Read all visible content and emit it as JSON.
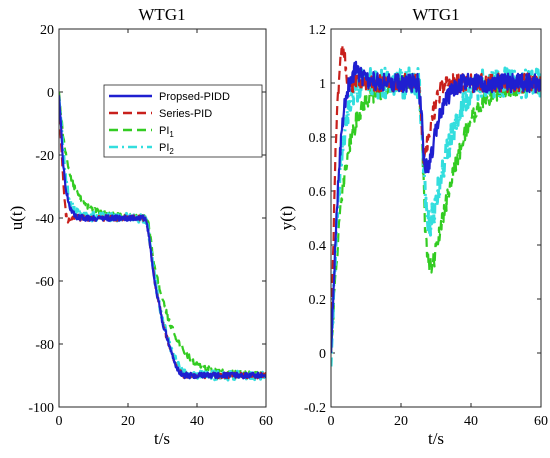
{
  "colors": {
    "proposed": "#1f1fd0",
    "series_pid": "#c8201c",
    "pi1": "#33cc22",
    "pi2": "#33dede"
  },
  "chart_data": [
    {
      "type": "line",
      "title": "WTG1",
      "xlabel": "t/s",
      "ylabel": "u(t)",
      "xlim": [
        0,
        60
      ],
      "ylim": [
        -100,
        20
      ],
      "xticks": [
        "0",
        "20",
        "40",
        "60"
      ],
      "yticks": [
        "-100",
        "-80",
        "-60",
        "-40",
        "-20",
        "0",
        "20"
      ],
      "grid": false,
      "legend_position": "top-right",
      "legend": [
        {
          "label": "Propsed-PIDD",
          "sub": "",
          "style": "solid",
          "color": "#1f1fd0"
        },
        {
          "label": "Series-PID",
          "sub": "",
          "style": "dashed",
          "color": "#c8201c"
        },
        {
          "label": "PI",
          "sub": "1",
          "style": "dashed",
          "color": "#33cc22"
        },
        {
          "label": "PI",
          "sub": "2",
          "style": "dashdot",
          "color": "#33dede"
        }
      ],
      "series": [
        {
          "key": "pi1",
          "style": "dashed",
          "color": "#33cc22",
          "x": [
            0,
            1,
            2,
            3,
            4,
            5,
            6,
            8,
            10,
            14,
            20,
            25,
            26,
            27,
            28,
            30,
            32,
            34,
            36,
            38,
            40,
            45,
            50,
            60
          ],
          "y": [
            0,
            -12,
            -20,
            -25,
            -29,
            -31.5,
            -33.5,
            -36,
            -37.5,
            -39,
            -39.5,
            -40,
            -42,
            -50,
            -57,
            -66,
            -73,
            -78,
            -82,
            -84.5,
            -86.5,
            -88.5,
            -89.3,
            -89.8
          ]
        },
        {
          "key": "pi2",
          "style": "dashdot",
          "color": "#33dede",
          "x": [
            0,
            1,
            2,
            3,
            5,
            8,
            15,
            25,
            26,
            27,
            28,
            30,
            32,
            34,
            36,
            40,
            50,
            60
          ],
          "y": [
            -2,
            -16,
            -28,
            -35,
            -38,
            -39.5,
            -39.8,
            -40,
            -44,
            -53,
            -61,
            -72,
            -80,
            -86,
            -89,
            -90,
            -90,
            -90
          ]
        },
        {
          "key": "series_pid",
          "style": "dashed",
          "color": "#c8201c",
          "x": [
            0,
            0.5,
            1,
            1.5,
            2,
            2.5,
            3,
            4,
            6,
            10,
            20,
            25,
            26,
            27,
            28,
            30,
            32,
            34,
            35,
            36,
            40,
            50,
            60
          ],
          "y": [
            -3,
            -14,
            -24,
            -33,
            -39,
            -41,
            -40,
            -39.5,
            -40,
            -40,
            -40,
            -40,
            -45,
            -54,
            -62,
            -73,
            -81,
            -87,
            -89,
            -89.8,
            -90,
            -90,
            -90
          ]
        },
        {
          "key": "proposed",
          "style": "solid",
          "color": "#1f1fd0",
          "x": [
            0,
            0.5,
            1,
            1.5,
            2,
            3,
            4,
            5,
            7,
            10,
            20,
            25,
            26,
            27,
            28,
            30,
            32,
            34,
            35,
            36,
            40,
            50,
            60
          ],
          "y": [
            -1,
            -10,
            -19,
            -26,
            -31,
            -36,
            -38.5,
            -39.5,
            -40,
            -40,
            -40,
            -40,
            -45,
            -54,
            -62,
            -73,
            -81,
            -87,
            -89,
            -90,
            -90,
            -90,
            -90
          ]
        }
      ]
    },
    {
      "type": "line",
      "title": "WTG1",
      "xlabel": "t/s",
      "ylabel": "y(t)",
      "xlim": [
        0,
        60
      ],
      "ylim": [
        -0.2,
        1.2
      ],
      "xticks": [
        "0",
        "20",
        "40",
        "60"
      ],
      "yticks": [
        "-0.2",
        "0",
        "0.2",
        "0.4",
        "0.6",
        "0.8",
        "1",
        "1.2"
      ],
      "grid": false,
      "series": [
        {
          "key": "pi1",
          "style": "dashed",
          "color": "#33cc22",
          "x": [
            0,
            1,
            2,
            3,
            4,
            5,
            6,
            8,
            10,
            15,
            20,
            25,
            26,
            26.5,
            27,
            28,
            29,
            30,
            32,
            34,
            36,
            38,
            40,
            44,
            50,
            60
          ],
          "y": [
            0,
            0.22,
            0.42,
            0.56,
            0.67,
            0.75,
            0.81,
            0.89,
            0.94,
            0.98,
            1.0,
            1.0,
            0.82,
            0.6,
            0.42,
            0.33,
            0.32,
            0.38,
            0.5,
            0.62,
            0.72,
            0.8,
            0.87,
            0.94,
            0.98,
            1.0
          ]
        },
        {
          "key": "pi2",
          "style": "dashdot",
          "color": "#33dede",
          "x": [
            0,
            1,
            2,
            3,
            4,
            5,
            6,
            8,
            10,
            15,
            20,
            25,
            26,
            26.5,
            27,
            28,
            29,
            30,
            32,
            34,
            36,
            38,
            40,
            45,
            50,
            60
          ],
          "y": [
            -0.05,
            0.3,
            0.55,
            0.72,
            0.84,
            0.91,
            0.95,
            0.99,
            1.0,
            1.0,
            1.0,
            1.0,
            0.85,
            0.7,
            0.55,
            0.48,
            0.5,
            0.56,
            0.68,
            0.79,
            0.88,
            0.94,
            0.98,
            1.0,
            1.0,
            1.0
          ]
        },
        {
          "key": "series_pid",
          "style": "dashed",
          "color": "#c8201c",
          "x": [
            0,
            0.5,
            1,
            1.5,
            2,
            2.5,
            3,
            3.5,
            4,
            4.5,
            5,
            6,
            8,
            10,
            20,
            25,
            26,
            26.5,
            27,
            28,
            29,
            30,
            31,
            32,
            34,
            36,
            40,
            50,
            60
          ],
          "y": [
            0,
            0.3,
            0.6,
            0.82,
            0.96,
            1.04,
            1.1,
            1.13,
            1.08,
            1.03,
            1.0,
            1.0,
            1.0,
            1.0,
            1.0,
            1.0,
            0.82,
            0.72,
            0.74,
            0.82,
            0.88,
            0.92,
            0.96,
            0.98,
            1.0,
            1.0,
            1.0,
            1.0,
            1.0
          ]
        },
        {
          "key": "proposed",
          "style": "solid",
          "color": "#1f1fd0",
          "x": [
            0,
            0.5,
            1,
            1.5,
            2,
            2.5,
            3,
            4,
            5,
            6,
            7,
            8,
            10,
            20,
            25,
            26,
            26.5,
            27,
            28,
            29,
            30,
            31,
            32,
            34,
            36,
            38,
            40,
            50,
            60
          ],
          "y": [
            0,
            0.15,
            0.32,
            0.48,
            0.62,
            0.73,
            0.82,
            0.93,
            0.99,
            1.03,
            1.05,
            1.04,
            1.01,
            1.0,
            1.0,
            0.85,
            0.72,
            0.68,
            0.7,
            0.76,
            0.82,
            0.87,
            0.91,
            0.96,
            0.99,
            1.0,
            1.0,
            1.0,
            1.0
          ]
        }
      ]
    }
  ]
}
